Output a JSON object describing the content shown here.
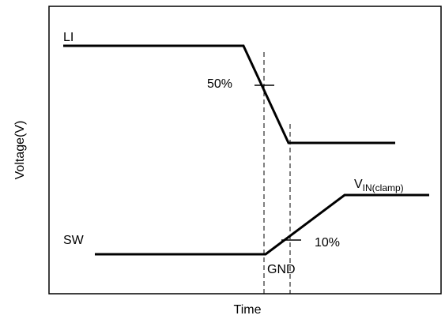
{
  "diagram": {
    "axes": {
      "x_label": "Time",
      "y_label": "Voltage(V)"
    },
    "signals": {
      "li_label": "LI",
      "sw_label": "SW"
    },
    "annotations": {
      "pct_50": "50%",
      "pct_10": "10%",
      "gnd": "GND",
      "vin_main": "V",
      "vin_sub": "IN(clamp)"
    },
    "colors": {
      "line": "#000000",
      "background": "#ffffff"
    }
  }
}
